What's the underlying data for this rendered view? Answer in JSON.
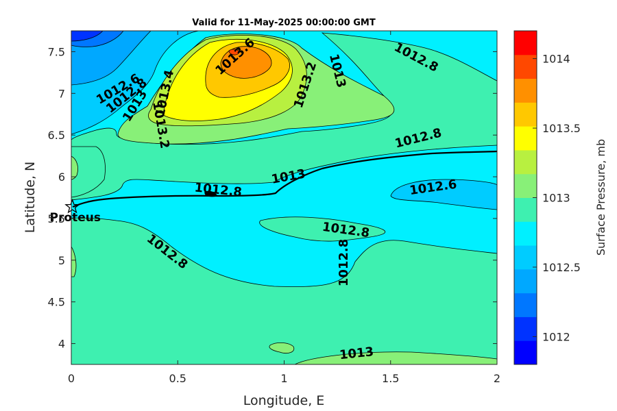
{
  "chart_data": {
    "type": "contour",
    "title": "Valid for 11-May-2025 00:00:00 GMT",
    "xlabel": "Longitude, E",
    "ylabel": "Latitude, N",
    "xlim": [
      0,
      2
    ],
    "ylim": [
      3.75,
      7.75
    ],
    "xticks": [
      0,
      0.5,
      1,
      1.5,
      2
    ],
    "xtick_labels": [
      "0",
      "0.5",
      "1",
      "1.5",
      "2"
    ],
    "yticks": [
      4,
      4.5,
      5,
      5.5,
      6,
      6.5,
      7,
      7.5
    ],
    "ytick_labels": [
      "4",
      "4.5",
      "5",
      "5.5",
      "6",
      "6.5",
      "7",
      "7.5"
    ],
    "colorbar": {
      "label": "Surface Pressure, mb",
      "range": [
        1011.8,
        1014.2
      ],
      "ticks": [
        1012,
        1012.5,
        1013,
        1013.5,
        1014
      ],
      "tick_labels": [
        "1012",
        "1012.5",
        "1013",
        "1013.5",
        "1014"
      ],
      "colors": [
        "#0000ff",
        "#0033ff",
        "#0077ff",
        "#00a8ff",
        "#00ccff",
        "#00f0ff",
        "#3ef0b0",
        "#88f078",
        "#b8f040",
        "#ffff00",
        "#ffc800",
        "#ff9000",
        "#ff4800",
        "#ff0000"
      ]
    },
    "contour_labels": [
      {
        "text": "1013.6",
        "x": 0.77,
        "y": 7.44,
        "rotate": -42
      },
      {
        "text": "1013.4",
        "x": 0.44,
        "y": 7.0,
        "rotate": -78
      },
      {
        "text": "1012.6",
        "x": 0.22,
        "y": 7.05,
        "rotate": -30
      },
      {
        "text": "1012.8",
        "x": 0.26,
        "y": 6.97,
        "rotate": -38
      },
      {
        "text": "1013",
        "x": 0.3,
        "y": 6.85,
        "rotate": -58
      },
      {
        "text": "1013.2",
        "x": 0.42,
        "y": 6.62,
        "rotate": 80
      },
      {
        "text": "1013.2",
        "x": 1.1,
        "y": 7.1,
        "rotate": -72
      },
      {
        "text": "1013",
        "x": 1.25,
        "y": 7.27,
        "rotate": 76
      },
      {
        "text": "1012.8",
        "x": 1.62,
        "y": 7.43,
        "rotate": 28
      },
      {
        "text": "1013",
        "x": 1.02,
        "y": 6.0,
        "rotate": -10
      },
      {
        "text": "1012.8",
        "x": 1.63,
        "y": 6.46,
        "rotate": -14
      },
      {
        "text": "1012.8",
        "x": 0.69,
        "y": 5.84,
        "rotate": 6
      },
      {
        "text": "1012.6",
        "x": 1.7,
        "y": 5.87,
        "rotate": -8
      },
      {
        "text": "1012.8",
        "x": 1.29,
        "y": 5.36,
        "rotate": 8
      },
      {
        "text": "1012.8",
        "x": 0.45,
        "y": 5.1,
        "rotate": 38
      },
      {
        "text": "1012.8",
        "x": 1.28,
        "y": 4.97,
        "rotate": -90
      },
      {
        "text": "1013",
        "x": 1.34,
        "y": 3.88,
        "rotate": -6
      }
    ],
    "marker": {
      "name": "Proteus",
      "x": 0.005,
      "y": 5.64,
      "symbol": "star"
    }
  }
}
